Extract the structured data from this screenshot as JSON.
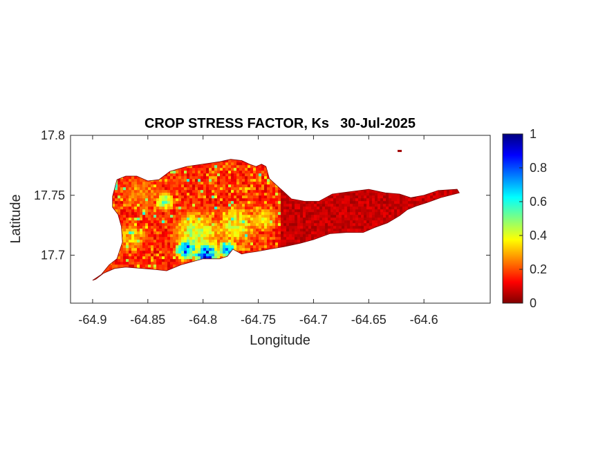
{
  "chart_data": {
    "type": "heatmap",
    "title": "CROP STRESS FACTOR, Ks",
    "date": "30-Jul-2025",
    "xlabel": "Longitude",
    "ylabel": "Latitude",
    "xlim": [
      -64.92,
      -64.54
    ],
    "ylim": [
      17.66,
      17.8
    ],
    "x_ticks": [
      -64.9,
      -64.85,
      -64.8,
      -64.75,
      -64.7,
      -64.65,
      -64.6
    ],
    "x_tick_labels": [
      "-64.9",
      "-64.85",
      "-64.8",
      "-64.75",
      "-64.7",
      "-64.65",
      "-64.6"
    ],
    "y_ticks": [
      17.8,
      17.75,
      17.7
    ],
    "y_tick_labels": [
      "17.8",
      "17.75",
      "17.7"
    ],
    "colorbar": {
      "colormap": "jet",
      "range": [
        0,
        1
      ],
      "ticks": [
        0,
        0.2,
        0.4,
        0.6,
        0.8,
        1
      ],
      "tick_labels": [
        "0",
        "0.2",
        "0.4",
        "0.6",
        "0.8",
        "1"
      ]
    },
    "island_outline_lonlat": [
      [
        -64.9,
        17.679
      ],
      [
        -64.892,
        17.684
      ],
      [
        -64.885,
        17.692
      ],
      [
        -64.878,
        17.697
      ],
      [
        -64.873,
        17.711
      ],
      [
        -64.874,
        17.724
      ],
      [
        -64.877,
        17.734
      ],
      [
        -64.882,
        17.74
      ],
      [
        -64.882,
        17.749
      ],
      [
        -64.878,
        17.763
      ],
      [
        -64.87,
        17.766
      ],
      [
        -64.86,
        17.766
      ],
      [
        -64.85,
        17.762
      ],
      [
        -64.84,
        17.763
      ],
      [
        -64.83,
        17.77
      ],
      [
        -64.815,
        17.774
      ],
      [
        -64.8,
        17.776
      ],
      [
        -64.785,
        17.778
      ],
      [
        -64.775,
        17.78
      ],
      [
        -64.765,
        17.779
      ],
      [
        -64.758,
        17.776
      ],
      [
        -64.752,
        17.774
      ],
      [
        -64.747,
        17.776
      ],
      [
        -64.743,
        17.774
      ],
      [
        -64.74,
        17.764
      ],
      [
        -64.733,
        17.758
      ],
      [
        -64.727,
        17.753
      ],
      [
        -64.72,
        17.747
      ],
      [
        -64.708,
        17.745
      ],
      [
        -64.695,
        17.745
      ],
      [
        -64.683,
        17.751
      ],
      [
        -64.667,
        17.753
      ],
      [
        -64.65,
        17.755
      ],
      [
        -64.635,
        17.752
      ],
      [
        -64.622,
        17.751
      ],
      [
        -64.612,
        17.748
      ],
      [
        -64.6,
        17.75
      ],
      [
        -64.587,
        17.754
      ],
      [
        -64.57,
        17.755
      ],
      [
        -64.568,
        17.752
      ],
      [
        -64.585,
        17.748
      ],
      [
        -64.597,
        17.744
      ],
      [
        -64.607,
        17.741
      ],
      [
        -64.615,
        17.738
      ],
      [
        -64.622,
        17.733
      ],
      [
        -64.633,
        17.727
      ],
      [
        -64.645,
        17.723
      ],
      [
        -64.655,
        17.719
      ],
      [
        -64.67,
        17.719
      ],
      [
        -64.685,
        17.718
      ],
      [
        -64.7,
        17.713
      ],
      [
        -64.712,
        17.71
      ],
      [
        -64.727,
        17.707
      ],
      [
        -64.74,
        17.705
      ],
      [
        -64.752,
        17.703
      ],
      [
        -64.76,
        17.702
      ],
      [
        -64.765,
        17.701
      ],
      [
        -64.773,
        17.705
      ],
      [
        -64.778,
        17.699
      ],
      [
        -64.785,
        17.697
      ],
      [
        -64.8,
        17.697
      ],
      [
        -64.808,
        17.695
      ],
      [
        -64.82,
        17.692
      ],
      [
        -64.833,
        17.687
      ],
      [
        -64.843,
        17.688
      ],
      [
        -64.855,
        17.689
      ],
      [
        -64.87,
        17.69
      ],
      [
        -64.88,
        17.689
      ],
      [
        -64.89,
        17.685
      ],
      [
        -64.897,
        17.68
      ]
    ],
    "islet_lonlat": [
      -64.622,
      17.787
    ],
    "stress_hotspots": [
      {
        "lon": -64.797,
        "lat": 17.7,
        "value": 0.95,
        "spread": 0.011
      },
      {
        "lon": -64.815,
        "lat": 17.705,
        "value": 0.85,
        "spread": 0.009
      },
      {
        "lon": -64.778,
        "lat": 17.705,
        "value": 0.8,
        "spread": 0.008
      },
      {
        "lon": -64.805,
        "lat": 17.718,
        "value": 0.5,
        "spread": 0.02
      },
      {
        "lon": -64.77,
        "lat": 17.725,
        "value": 0.45,
        "spread": 0.018
      },
      {
        "lon": -64.835,
        "lat": 17.745,
        "value": 0.55,
        "spread": 0.008
      },
      {
        "lon": -64.745,
        "lat": 17.73,
        "value": 0.4,
        "spread": 0.012
      },
      {
        "lon": -64.865,
        "lat": 17.715,
        "value": 0.35,
        "spread": 0.015
      },
      {
        "lon": -64.855,
        "lat": 17.75,
        "value": 0.28,
        "spread": 0.02
      }
    ]
  }
}
